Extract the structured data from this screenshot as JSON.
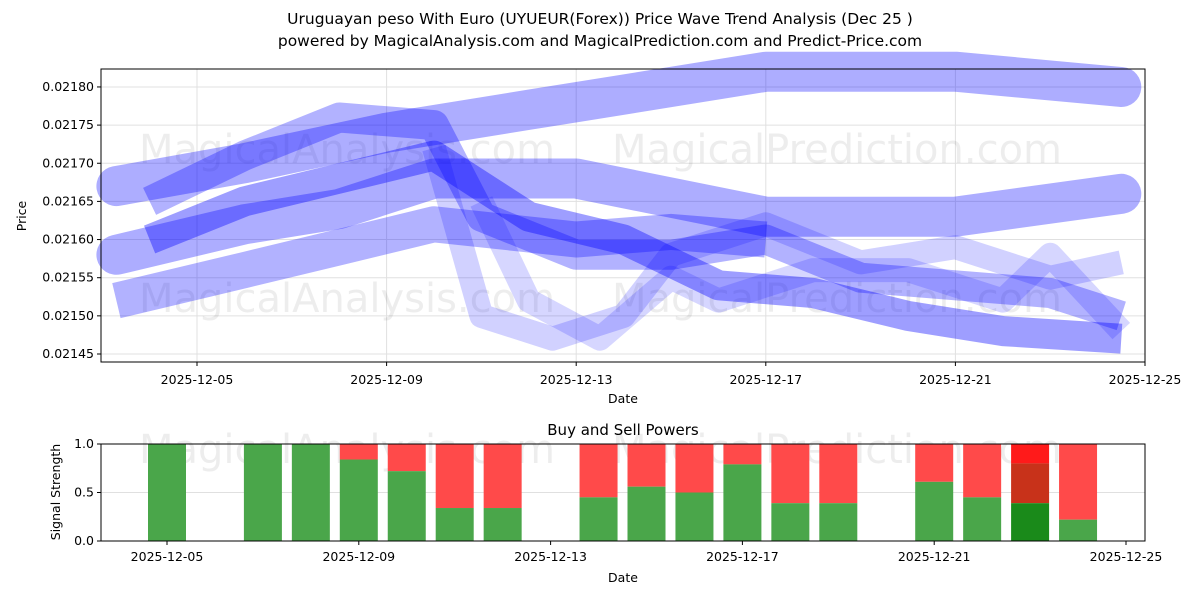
{
  "title_line1": "Uruguayan peso With Euro (UYUEUR(Forex)) Price Wave Trend Analysis (Dec 25 )",
  "title_line2": "powered by MagicalAnalysis.com and MagicalPrediction.com and Predict-Price.com",
  "watermarks": [
    "MagicalAnalysis.com",
    "MagicalPrediction.com"
  ],
  "colors": {
    "wave": "#0000ff",
    "buy": "#4aa64a",
    "sell": "#ff4a4a",
    "buy_dark": "#1a8a1a",
    "sell_dark": "#c8321a",
    "sell_bright": "#ff1a1a"
  },
  "chart_data": [
    {
      "type": "line",
      "title": "",
      "xlabel": "Date",
      "ylabel": "Price",
      "xticks": [
        "2025-12-05",
        "2025-12-09",
        "2025-12-13",
        "2025-12-17",
        "2025-12-21",
        "2025-12-25"
      ],
      "xtick_days": [
        5,
        9,
        13,
        17,
        21,
        25
      ],
      "yticks": [
        "0.02145",
        "0.02150",
        "0.02155",
        "0.02160",
        "0.02165",
        "0.02170",
        "0.02175",
        "0.02180"
      ],
      "ylim": [
        0.02144,
        0.021825
      ],
      "xlim_days": [
        3,
        25
      ],
      "grid": true,
      "series": [
        {
          "name": "wave-upper",
          "points": [
            [
              3.3,
              0.02167
            ],
            [
              6,
              0.0217
            ],
            [
              9,
              0.02174
            ],
            [
              12,
              0.02177
            ],
            [
              14,
              0.02179
            ],
            [
              17,
              0.02182
            ],
            [
              21,
              0.02182
            ],
            [
              24.5,
              0.0218
            ]
          ]
        },
        {
          "name": "wave-middle",
          "points": [
            [
              3.3,
              0.02158
            ],
            [
              6,
              0.02162
            ],
            [
              8,
              0.02164
            ],
            [
              10,
              0.02168
            ],
            [
              13,
              0.02168
            ],
            [
              17,
              0.02163
            ],
            [
              21,
              0.02163
            ],
            [
              24.5,
              0.02166
            ]
          ]
        },
        {
          "name": "wave-lower",
          "points": [
            [
              3.3,
              0.02152
            ],
            [
              6,
              0.02156
            ],
            [
              8,
              0.02159
            ],
            [
              10,
              0.02162
            ],
            [
              13,
              0.0216
            ],
            [
              15,
              0.02161
            ],
            [
              17,
              0.0216
            ]
          ]
        },
        {
          "name": "wave-trend",
          "points": [
            [
              4,
              0.0216
            ],
            [
              6,
              0.02165
            ],
            [
              8,
              0.02168
            ],
            [
              10,
              0.02171
            ],
            [
              12,
              0.02163
            ],
            [
              14,
              0.0216
            ],
            [
              16,
              0.02154
            ],
            [
              18,
              0.02153
            ],
            [
              20,
              0.0215
            ],
            [
              22,
              0.02148
            ],
            [
              24.5,
              0.02147
            ]
          ]
        },
        {
          "name": "wave-peak",
          "points": [
            [
              4,
              0.02165
            ],
            [
              6,
              0.02171
            ],
            [
              8,
              0.02176
            ],
            [
              10,
              0.02175
            ],
            [
              11,
              0.02163
            ],
            [
              13,
              0.02158
            ],
            [
              15,
              0.02158
            ],
            [
              17,
              0.0216
            ],
            [
              19,
              0.02155
            ],
            [
              21,
              0.02154
            ],
            [
              23,
              0.02153
            ],
            [
              24.5,
              0.0215
            ]
          ]
        },
        {
          "name": "wave-dip",
          "points": [
            [
              10,
              0.02172
            ],
            [
              11,
              0.0215
            ],
            [
              12.5,
              0.02147
            ],
            [
              14,
              0.0215
            ],
            [
              15,
              0.02158
            ],
            [
              17,
              0.02162
            ],
            [
              19,
              0.02157
            ],
            [
              21,
              0.02159
            ],
            [
              23,
              0.02155
            ],
            [
              24.5,
              0.02157
            ]
          ]
        },
        {
          "name": "wave-dip2",
          "points": [
            [
              11,
              0.02165
            ],
            [
              12,
              0.02152
            ],
            [
              13.5,
              0.02147
            ],
            [
              15,
              0.02155
            ],
            [
              16,
              0.02152
            ],
            [
              18,
              0.02156
            ],
            [
              20,
              0.02156
            ],
            [
              22,
              0.02152
            ],
            [
              23,
              0.02158
            ],
            [
              24.5,
              0.02148
            ]
          ]
        }
      ]
    },
    {
      "type": "bar",
      "title": "Buy and Sell Powers",
      "xlabel": "Date",
      "ylabel": "Signal Strength",
      "ylim": [
        0,
        1
      ],
      "yticks": [
        "0.0",
        "0.5",
        "1.0"
      ],
      "xticks": [
        "2025-12-05",
        "2025-12-09",
        "2025-12-13",
        "2025-12-17",
        "2025-12-21",
        "2025-12-25"
      ],
      "xtick_days": [
        5,
        9,
        13,
        17,
        21,
        25
      ],
      "days": [
        5,
        7,
        8,
        9,
        10,
        11,
        12,
        14,
        15,
        16,
        17,
        18,
        19,
        21,
        22,
        23,
        24
      ],
      "buy": [
        1.0,
        1.0,
        1.0,
        0.84,
        0.72,
        0.34,
        0.34,
        0.45,
        0.56,
        0.5,
        0.79,
        0.39,
        0.39,
        0.61,
        0.45,
        0.39,
        0.22
      ],
      "highlight_day": 23,
      "highlight_sell_split": 0.8
    }
  ]
}
